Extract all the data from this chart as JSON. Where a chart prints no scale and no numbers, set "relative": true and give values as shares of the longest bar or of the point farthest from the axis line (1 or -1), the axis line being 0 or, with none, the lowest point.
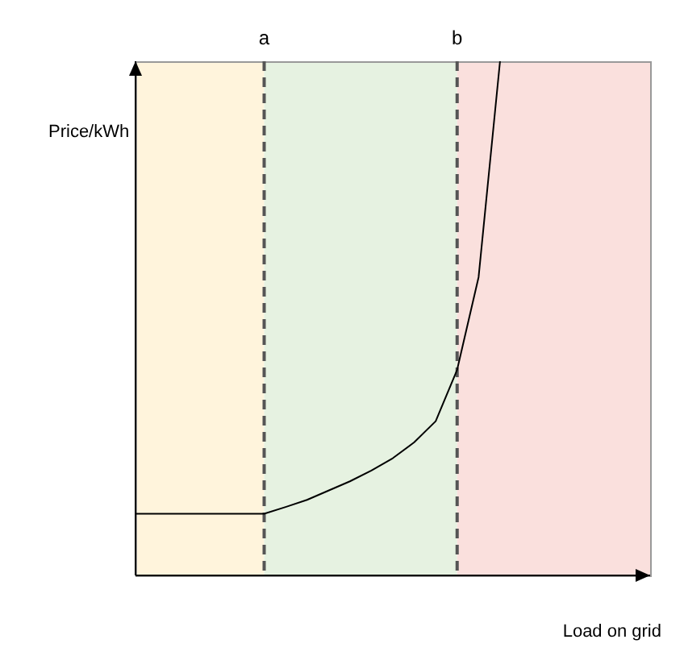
{
  "chart_data": {
    "type": "line",
    "relative": true,
    "xlabel": "Load on grid",
    "ylabel": "Price/kWh",
    "tick_labels": false,
    "legend": false,
    "marker": "none",
    "line_style": "solid",
    "annotations": [
      "a",
      "b"
    ],
    "categories": [
      null,
      null,
      null,
      null,
      null,
      null,
      null,
      null,
      null,
      null,
      null,
      null,
      null,
      null,
      null,
      null,
      null,
      null,
      null,
      null,
      null,
      null,
      null,
      null,
      null
    ],
    "series": [
      {
        "color": "#000000",
        "values": [
          0.12,
          0.12,
          0.12,
          0.12,
          0.12,
          0.12,
          0.12,
          0.133,
          0.147,
          0.165,
          0.183,
          0.204,
          0.228,
          0.259,
          0.3,
          0.4,
          0.58,
          1.0,
          null,
          null,
          null,
          null,
          null,
          null,
          null
        ]
      }
    ]
  }
}
